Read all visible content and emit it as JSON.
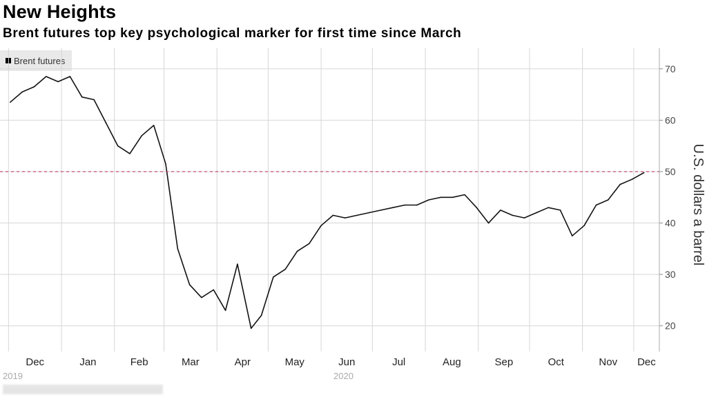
{
  "header": {
    "title": "New Heights",
    "subtitle": "Brent futures top key psychological marker for first time since March"
  },
  "legend": {
    "label": "Brent futures"
  },
  "colors": {
    "line": "#111111",
    "reference": "#c24a70",
    "grid": "#d6d6d6"
  },
  "chart_data": {
    "type": "line",
    "ylabel": "U.S. dollars a barrel",
    "ylim": [
      15,
      74
    ],
    "yticks": [
      20,
      30,
      40,
      50,
      60,
      70
    ],
    "xticks": [
      "Dec",
      "Jan",
      "Feb",
      "Mar",
      "Apr",
      "May",
      "Jun",
      "Jul",
      "Aug",
      "Sep",
      "Oct",
      "Nov",
      "Dec"
    ],
    "year_labels": [
      "2019",
      "2020"
    ],
    "reference_line": 50,
    "series": [
      {
        "name": "Brent futures",
        "x": [
          "2019-12-02",
          "2019-12-09",
          "2019-12-16",
          "2019-12-23",
          "2019-12-30",
          "2020-01-06",
          "2020-01-13",
          "2020-01-20",
          "2020-01-27",
          "2020-02-03",
          "2020-02-10",
          "2020-02-17",
          "2020-02-24",
          "2020-03-02",
          "2020-03-09",
          "2020-03-16",
          "2020-03-23",
          "2020-03-30",
          "2020-04-06",
          "2020-04-13",
          "2020-04-21",
          "2020-04-27",
          "2020-05-04",
          "2020-05-11",
          "2020-05-18",
          "2020-05-25",
          "2020-06-01",
          "2020-06-08",
          "2020-06-15",
          "2020-06-22",
          "2020-06-29",
          "2020-07-06",
          "2020-07-13",
          "2020-07-20",
          "2020-07-27",
          "2020-08-03",
          "2020-08-10",
          "2020-08-17",
          "2020-08-24",
          "2020-08-31",
          "2020-09-07",
          "2020-09-14",
          "2020-09-21",
          "2020-09-28",
          "2020-10-05",
          "2020-10-12",
          "2020-10-19",
          "2020-10-26",
          "2020-11-02",
          "2020-11-09",
          "2020-11-16",
          "2020-11-23",
          "2020-11-30",
          "2020-12-07"
        ],
        "y": [
          63.5,
          65.5,
          66.5,
          68.5,
          67.5,
          68.5,
          64.5,
          64.0,
          59.5,
          55.0,
          53.5,
          57.0,
          59.0,
          51.5,
          35.0,
          28.0,
          25.5,
          27.0,
          23.0,
          32.0,
          19.5,
          22.0,
          29.5,
          31.0,
          34.5,
          36.0,
          39.5,
          41.5,
          41.0,
          41.5,
          42.0,
          42.5,
          43.0,
          43.5,
          43.5,
          44.5,
          45.0,
          45.0,
          45.5,
          43.0,
          40.0,
          42.5,
          41.5,
          41.0,
          42.0,
          43.0,
          42.5,
          37.5,
          39.5,
          43.5,
          44.5,
          47.5,
          48.5,
          49.8
        ]
      }
    ]
  },
  "footer": {
    "source": ""
  }
}
